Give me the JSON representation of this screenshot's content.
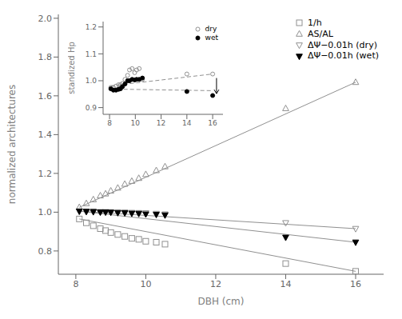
{
  "chart_data": [
    {
      "type": "scatter",
      "xlabel": "DBH (cm)",
      "ylabel": "normalized architectures",
      "xlim": [
        7.5,
        16.8
      ],
      "ylim": [
        0.68,
        2.02
      ],
      "xticks": [
        8,
        10,
        12,
        14,
        16
      ],
      "yticks": [
        0.8,
        {
          "value": 1.0,
          "label": "1.0"
        },
        1.2,
        1.4,
        1.6,
        1.8,
        {
          "value": 2.0,
          "label": "2.0"
        }
      ],
      "grid": false,
      "legend": "upper right",
      "series": [
        {
          "name": "1/h",
          "color": "#909090",
          "marker": "square-open",
          "x": [
            8.1,
            8.3,
            8.5,
            8.7,
            8.85,
            9.0,
            9.2,
            9.4,
            9.6,
            9.8,
            10.0,
            10.3,
            10.55,
            14.0,
            16.0
          ],
          "values": [
            0.965,
            0.945,
            0.93,
            0.915,
            0.905,
            0.895,
            0.885,
            0.875,
            0.865,
            0.86,
            0.85,
            0.845,
            0.835,
            0.735,
            0.695
          ],
          "fit": {
            "x": [
              8.1,
              16.0
            ],
            "values": [
              0.965,
              0.695
            ],
            "color": "#909090",
            "line_style": "solid"
          }
        },
        {
          "name": "AS/AL",
          "color": "#909090",
          "marker": "triangle-up-open",
          "x": [
            8.1,
            8.3,
            8.5,
            8.7,
            8.85,
            9.0,
            9.2,
            9.4,
            9.6,
            9.8,
            10.0,
            10.3,
            10.55,
            14.0,
            16.0
          ],
          "values": [
            1.025,
            1.045,
            1.065,
            1.085,
            1.095,
            1.11,
            1.125,
            1.145,
            1.16,
            1.175,
            1.195,
            1.215,
            1.235,
            1.535,
            1.67
          ],
          "fit": {
            "x": [
              8.1,
              16.0
            ],
            "values": [
              1.025,
              1.67
            ],
            "color": "#909090",
            "line_style": "solid"
          }
        },
        {
          "name": "ΔΨ−0.01h (dry)",
          "color": "#909090",
          "marker": "triangle-down-open",
          "x": [
            8.1,
            8.3,
            8.5,
            8.7,
            8.85,
            9.0,
            9.2,
            9.4,
            9.6,
            9.8,
            10.0,
            10.3,
            10.55,
            14.0,
            16.0
          ],
          "values": [
            1.005,
            1.005,
            1.005,
            1.002,
            1.002,
            1.001,
            1.0,
            1.0,
            0.998,
            0.997,
            0.996,
            0.993,
            0.99,
            0.945,
            0.915
          ],
          "fit": {
            "x": [
              8.1,
              16.0
            ],
            "values": [
              1.005,
              0.915
            ],
            "color": "#909090",
            "line_style": "solid"
          }
        },
        {
          "name": "ΔΨ−0.01h (wet)",
          "color": "#000000",
          "marker": "triangle-down",
          "x": [
            8.1,
            8.3,
            8.5,
            8.7,
            8.85,
            9.0,
            9.2,
            9.4,
            9.6,
            9.8,
            10.0,
            10.3,
            10.55,
            14.0,
            16.0
          ],
          "values": [
            1.005,
            1.003,
            1.002,
            1.0,
            1.0,
            0.999,
            0.997,
            0.996,
            0.994,
            0.993,
            0.99,
            0.988,
            0.985,
            0.87,
            0.845
          ],
          "fit": {
            "x": [
              8.1,
              16.0
            ],
            "values": [
              1.005,
              0.845
            ],
            "color": "#909090",
            "line_style": "solid"
          }
        }
      ]
    },
    {
      "type": "scatter",
      "ylabel": "standized Hp",
      "xlim": [
        7.5,
        16.8
      ],
      "ylim": [
        0.875,
        1.22
      ],
      "xticks": [
        8,
        10,
        12,
        14,
        16
      ],
      "yticks": [
        0.9,
        {
          "value": 1.0,
          "label": "1.0"
        },
        1.1,
        1.2
      ],
      "grid": false,
      "legend": "upper right",
      "series": [
        {
          "name": "dry",
          "color": "#909090",
          "marker": "circle-open",
          "x": [
            8.1,
            8.3,
            8.5,
            8.7,
            8.85,
            9.0,
            9.2,
            9.4,
            9.55,
            9.75,
            9.95,
            10.1,
            10.3,
            10.55,
            14.0,
            16.0
          ],
          "values": [
            0.975,
            0.975,
            0.98,
            0.985,
            0.985,
            0.99,
            1.005,
            1.02,
            1.04,
            1.045,
            1.03,
            1.04,
            1.045,
            1.005,
            1.025,
            1.025
          ],
          "fit": {
            "x": [
              8.1,
              16.0
            ],
            "values": [
              0.981,
              1.025
            ],
            "color": "#909090",
            "line_style": "dashed"
          }
        },
        {
          "name": "wet",
          "color": "#000000",
          "marker": "circle",
          "x": [
            8.1,
            8.3,
            8.5,
            8.7,
            8.85,
            9.0,
            9.2,
            9.4,
            9.55,
            9.75,
            9.95,
            10.1,
            10.3,
            10.55,
            14.0,
            16.0
          ],
          "values": [
            0.97,
            0.965,
            0.965,
            0.968,
            0.97,
            0.978,
            0.988,
            1.0,
            1.0,
            1.005,
            1.003,
            1.005,
            1.005,
            1.01,
            0.96,
            0.945
          ],
          "fit": {
            "x": [
              8.1,
              16.0
            ],
            "values": [
              0.969,
              0.963
            ],
            "color": "#909090",
            "line_style": "dashed"
          }
        }
      ],
      "arrow": {
        "x": 16.3,
        "y_start": 1.01,
        "y_end": 0.952,
        "color": "#000000"
      }
    }
  ]
}
